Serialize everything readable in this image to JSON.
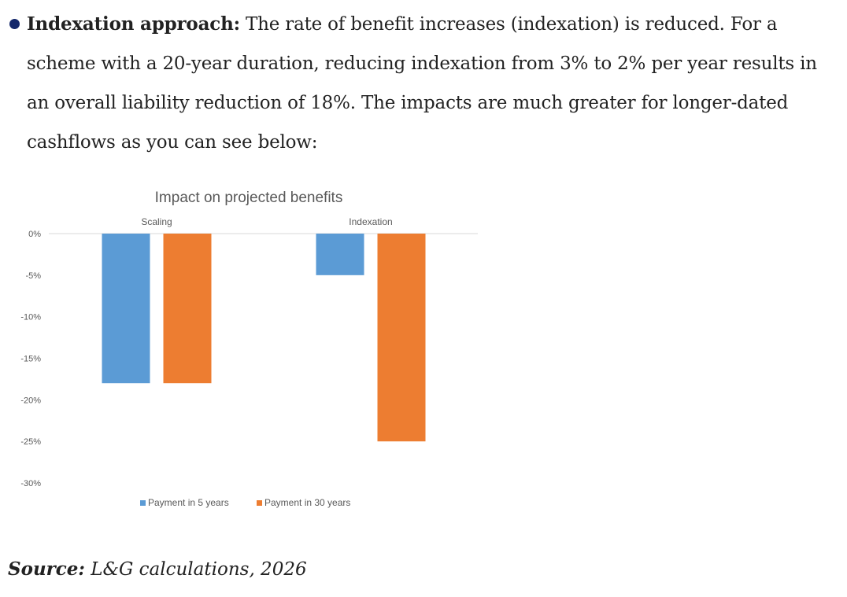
{
  "paragraph": {
    "lead": "Indexation approach:",
    "body": " The rate of benefit increases (indexation) is reduced. For a scheme with a 20-year duration, reducing indexation from 3% to 2% per year results in an overall liability reduction of 18%. The impacts are much greater for longer-dated cashflows as you can see below:"
  },
  "chart_data": {
    "type": "bar",
    "title": "Impact on projected benefits",
    "categories": [
      "Scaling",
      "Indexation"
    ],
    "series": [
      {
        "name": "Payment in 5 years",
        "color": "#5b9bd5",
        "values": [
          -18,
          -5
        ]
      },
      {
        "name": "Payment in 30 years",
        "color": "#ed7d31",
        "values": [
          -18,
          -25
        ]
      }
    ],
    "ylim": [
      -30,
      0
    ],
    "yticks": [
      0,
      -5,
      -10,
      -15,
      -20,
      -25,
      -30
    ],
    "ytick_labels": [
      "0%",
      "-5%",
      "-10%",
      "-15%",
      "-20%",
      "-25%",
      "-30%"
    ],
    "category_label_position": "top",
    "legend_position": "bottom",
    "xlabel": "",
    "ylabel": "",
    "grid": false
  },
  "source": {
    "label": "Source:",
    "text": " L&G calculations, 2026"
  }
}
